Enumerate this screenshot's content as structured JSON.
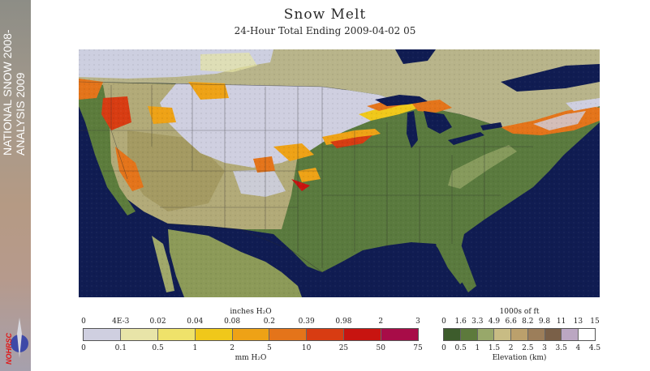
{
  "banner": {
    "line1": "NATIONAL SNOW 2008-",
    "line2": "ANALYSIS 2009",
    "logo_text": "NOHRSC"
  },
  "header": {
    "title": "Snow Melt",
    "subtitle": "24-Hour Total Ending 2009-04-02 05"
  },
  "melt_legend": {
    "top_unit": "inches H₂O",
    "bottom_unit": "mm H₂O",
    "inch_ticks": [
      "0",
      "4E-3",
      "0.02",
      "0.04",
      "0.08",
      "0.2",
      "0.39",
      "0.98",
      "2",
      "3"
    ],
    "mm_ticks": [
      "0",
      "0.1",
      "0.5",
      "1",
      "2",
      "5",
      "10",
      "25",
      "50",
      "75"
    ],
    "colors": [
      "#cfcfe0",
      "#e8e4a8",
      "#efe26a",
      "#f0c81a",
      "#eea216",
      "#e4741a",
      "#d83c12",
      "#c81410",
      "#a80c48"
    ]
  },
  "elev_legend": {
    "top_unit": "1000s of ft",
    "bottom_unit": "Elevation (km)",
    "ft_ticks": [
      "0",
      "1.6",
      "3.3",
      "4.9",
      "6.6",
      "8.2",
      "9.8",
      "11",
      "13",
      "15"
    ],
    "km_ticks": [
      "0",
      "0.5",
      "1",
      "1.5",
      "2",
      "2.5",
      "3",
      "3.5",
      "4",
      "4.5"
    ],
    "colors": [
      "#3d5c2c",
      "#5d7a3c",
      "#98a86a",
      "#c8bc84",
      "#bba06c",
      "#9c7e5a",
      "#7a6048",
      "#bba7c2",
      "#ffffff"
    ]
  }
}
